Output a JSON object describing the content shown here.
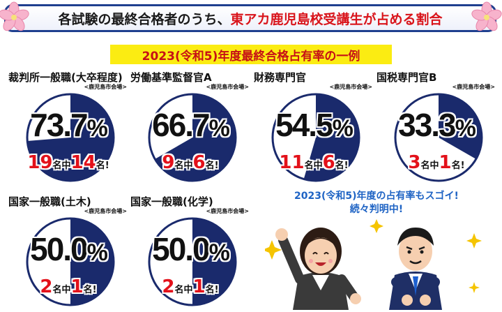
{
  "header": {
    "title_part1": "各試験の最終合格者のうち、",
    "title_part2": "東アカ鹿児島校受講生が占める割合"
  },
  "subtitle": "2023(令和5)年度最終合格占有率の一例",
  "items": [
    {
      "name": "裁判所一般職(大卒程度)",
      "venue": "<鹿児島市会場>",
      "percent": "73.7",
      "unit": "%",
      "total": "19",
      "mid": "名中",
      "count": "14",
      "end": "名!",
      "share": 0.737
    },
    {
      "name": "労働基準監督官A",
      "venue": "<鹿児島市会場>",
      "percent": "66.7",
      "unit": "%",
      "total": "9",
      "mid": "名中",
      "count": "6",
      "end": "名!",
      "share": 0.667
    },
    {
      "name": "財務専門官",
      "venue": "<鹿児島市会場>",
      "percent": "54.5",
      "unit": "%",
      "total": "11",
      "mid": "名中",
      "count": "6",
      "end": "名!",
      "share": 0.545
    },
    {
      "name": "国税専門官B",
      "venue": "<鹿児島市会場>",
      "percent": "33.3",
      "unit": "%",
      "total": "3",
      "mid": "名中",
      "count": "1",
      "end": "名!",
      "share": 0.333
    },
    {
      "name": "国家一般職(土木)",
      "venue": "<鹿児島市会場>",
      "percent": "50.0",
      "unit": "%",
      "total": "2",
      "mid": "名中",
      "count": "1",
      "end": "名!",
      "share": 0.5
    },
    {
      "name": "国家一般職(化学)",
      "venue": "<鹿児島市会場>",
      "percent": "50.0",
      "unit": "%",
      "total": "2",
      "mid": "名中",
      "count": "1",
      "end": "名!",
      "share": 0.5
    }
  ],
  "cheer": {
    "line1": "2023(令和5)年度の占有率もスゴイ!",
    "line2": "続々判明中!"
  },
  "colors": {
    "navy": "#1a2a6c",
    "red": "#e3111a",
    "yellow": "#fbec12",
    "pink": "#f4a6c4"
  },
  "icons": [
    "sakura-icon",
    "cheering-woman-illustration",
    "cheering-man-illustration"
  ]
}
